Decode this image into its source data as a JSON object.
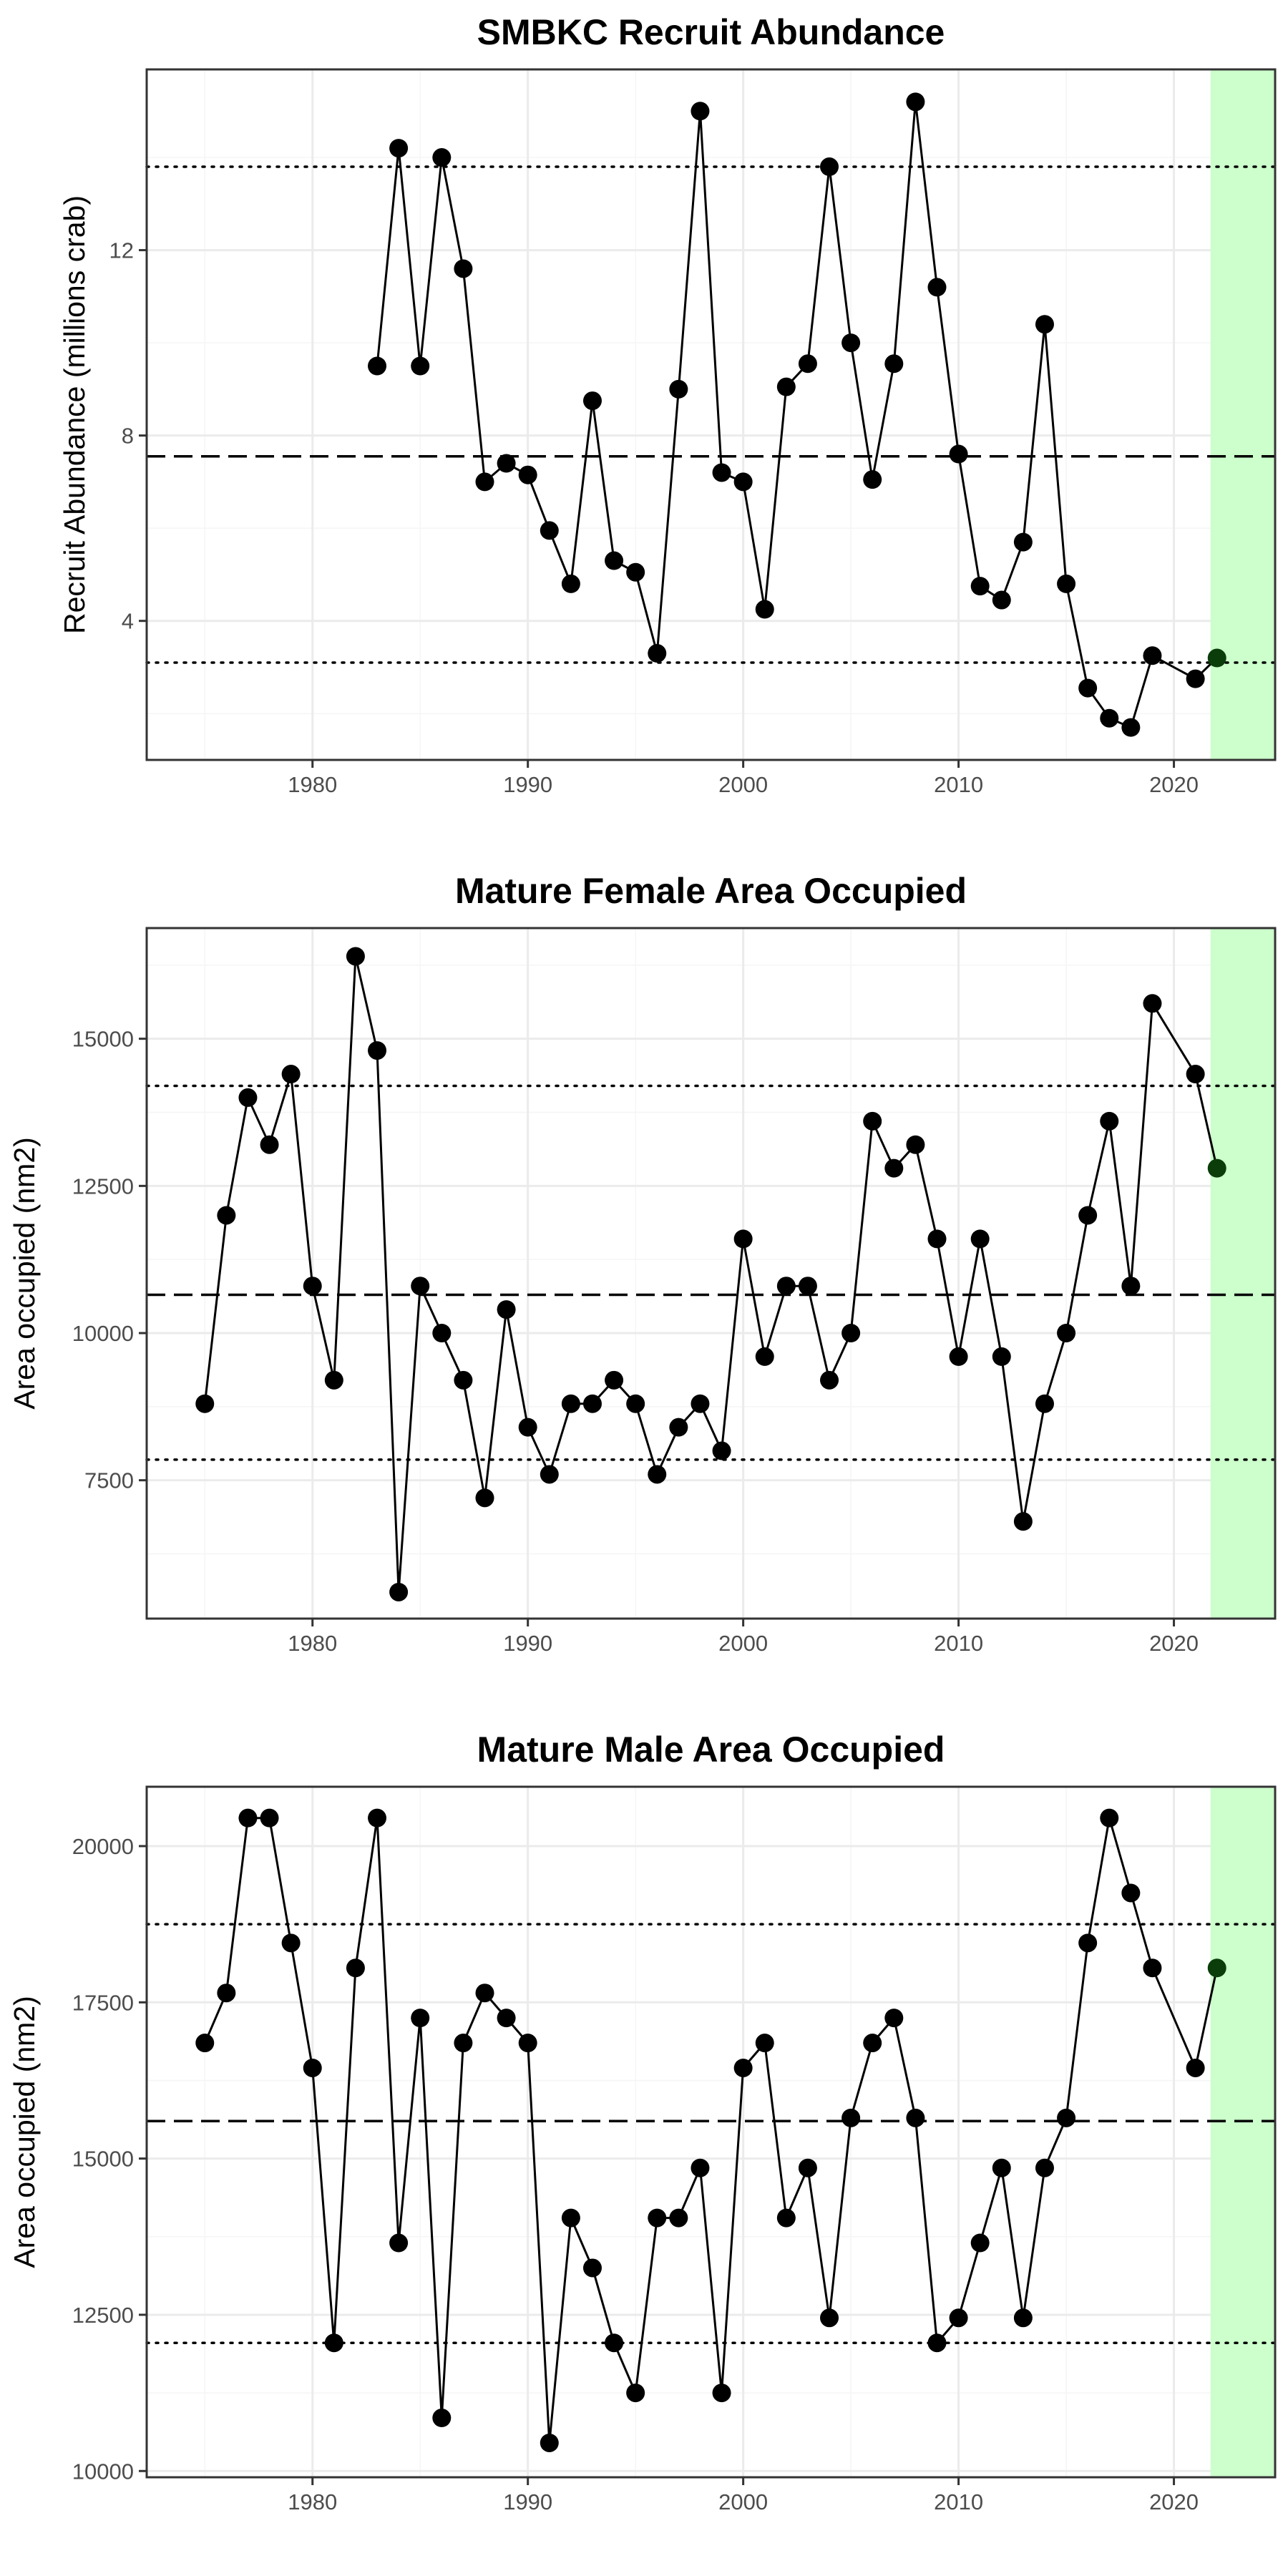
{
  "colors": {
    "highlight": "#ccffcc",
    "line": "#000000",
    "point": "#000000",
    "last_point": "#0a3d0a",
    "grid_major": "#ebebeb",
    "grid_minor": "#f5f5f5",
    "border": "#333333"
  },
  "chart_data": [
    {
      "type": "line",
      "title": "SMBKC Recruit Abundance",
      "xlabel": "",
      "ylabel": "Recruit Abundance (millions crab)",
      "xlim": [
        1972.3,
        2024.7
      ],
      "ylim": [
        1.0,
        15.9
      ],
      "x_ticks": [
        1980,
        1990,
        2000,
        2010,
        2020
      ],
      "y_ticks": [
        4,
        8,
        12
      ],
      "grid": true,
      "highlight_x": [
        2021.7,
        2024.7
      ],
      "reference_lines": {
        "mean": 7.55,
        "upper": 13.8,
        "lower": 3.1
      },
      "x": [
        1983,
        1984,
        1985,
        1986,
        1987,
        1988,
        1989,
        1990,
        1991,
        1992,
        1993,
        1994,
        1995,
        1996,
        1997,
        1998,
        1999,
        2000,
        2001,
        2002,
        2003,
        2004,
        2005,
        2006,
        2007,
        2008,
        2009,
        2010,
        2011,
        2012,
        2013,
        2014,
        2015,
        2016,
        2017,
        2018,
        2019,
        2021,
        2022
      ],
      "y": [
        9.5,
        14.2,
        9.5,
        14.0,
        11.6,
        7.0,
        7.4,
        7.15,
        5.95,
        4.8,
        8.75,
        5.3,
        5.05,
        3.3,
        9.0,
        15.0,
        7.2,
        7.0,
        4.25,
        9.05,
        9.55,
        13.8,
        10.0,
        7.05,
        9.55,
        15.2,
        11.2,
        7.6,
        4.75,
        4.45,
        5.7,
        10.4,
        4.8,
        2.55,
        1.9,
        1.7,
        3.25,
        2.75,
        3.2
      ]
    },
    {
      "type": "line",
      "title": "Mature Female Area Occupied",
      "xlabel": "",
      "ylabel": "Area occupied (nm2)",
      "xlim": [
        1972.3,
        2024.7
      ],
      "ylim": [
        5150,
        16880
      ],
      "x_ticks": [
        1980,
        1990,
        2000,
        2010,
        2020
      ],
      "y_ticks": [
        7500,
        10000,
        12500,
        15000
      ],
      "grid": true,
      "highlight_x": [
        2021.7,
        2024.7
      ],
      "reference_lines": {
        "mean": 10650,
        "upper": 14200,
        "lower": 7850
      },
      "x": [
        1975,
        1976,
        1977,
        1978,
        1979,
        1980,
        1981,
        1982,
        1983,
        1984,
        1985,
        1986,
        1987,
        1988,
        1989,
        1990,
        1991,
        1992,
        1993,
        1994,
        1995,
        1996,
        1997,
        1998,
        1999,
        2000,
        2001,
        2002,
        2003,
        2004,
        2005,
        2006,
        2007,
        2008,
        2009,
        2010,
        2011,
        2012,
        2013,
        2014,
        2015,
        2016,
        2017,
        2018,
        2019,
        2021,
        2022
      ],
      "y": [
        8800,
        12000,
        14000,
        13200,
        14400,
        10800,
        9200,
        16400,
        14800,
        5600,
        10800,
        10000,
        9200,
        7200,
        10400,
        8400,
        7600,
        8800,
        8800,
        9200,
        8800,
        7600,
        8400,
        8800,
        8000,
        11600,
        9600,
        10800,
        10800,
        9200,
        10000,
        13600,
        12800,
        13200,
        11600,
        9600,
        11600,
        9600,
        6800,
        8800,
        10000,
        12000,
        13600,
        10800,
        15600,
        14400,
        12800
      ]
    },
    {
      "type": "line",
      "title": "Mature Male Area Occupied",
      "xlabel": "",
      "ylabel": "Area occupied (nm2)",
      "xlim": [
        1972.3,
        2024.7
      ],
      "ylim": [
        9900,
        20950
      ],
      "x_ticks": [
        1980,
        1990,
        2000,
        2010,
        2020
      ],
      "y_ticks": [
        10000,
        12500,
        15000,
        17500,
        20000
      ],
      "grid": true,
      "highlight_x": [
        2021.7,
        2024.7
      ],
      "reference_lines": {
        "mean": 15600,
        "upper": 18750,
        "lower": 12050
      },
      "x": [
        1975,
        1976,
        1977,
        1978,
        1979,
        1980,
        1981,
        1982,
        1983,
        1984,
        1985,
        1986,
        1987,
        1988,
        1989,
        1990,
        1991,
        1992,
        1993,
        1994,
        1995,
        1996,
        1997,
        1998,
        1999,
        2000,
        2001,
        2002,
        2003,
        2004,
        2005,
        2006,
        2007,
        2008,
        2009,
        2010,
        2011,
        2012,
        2013,
        2014,
        2015,
        2016,
        2017,
        2018,
        2019,
        2021,
        2022
      ],
      "y": [
        16850,
        17650,
        20450,
        20450,
        18450,
        16450,
        12050,
        18050,
        20450,
        13650,
        17250,
        10850,
        16850,
        17650,
        17250,
        16850,
        10450,
        14050,
        13250,
        12050,
        11250,
        14050,
        14050,
        14850,
        11250,
        16450,
        16850,
        14050,
        14850,
        12450,
        15650,
        16850,
        17250,
        15650,
        12050,
        12450,
        13650,
        14850,
        12450,
        14850,
        15650,
        18450,
        20450,
        19250,
        18050,
        16450,
        18050
      ]
    }
  ]
}
